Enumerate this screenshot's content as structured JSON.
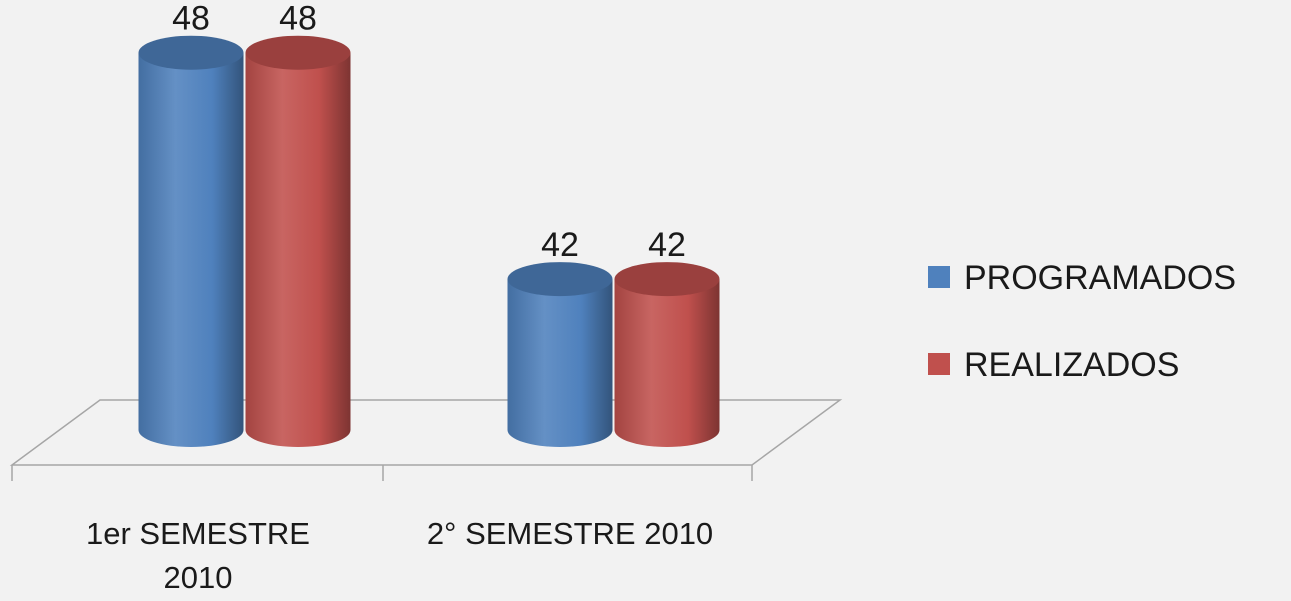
{
  "chart_data": {
    "type": "bar3d",
    "categories": [
      "1er SEMESTRE 2010",
      "2° SEMESTRE 2010"
    ],
    "series": [
      {
        "name": "PROGRAMADOS",
        "color": "#4f81bd",
        "values": [
          48,
          42
        ]
      },
      {
        "name": "REALIZADOS",
        "color": "#c0504d",
        "values": [
          48,
          42
        ]
      }
    ],
    "ylim": [
      38,
      49
    ]
  }
}
